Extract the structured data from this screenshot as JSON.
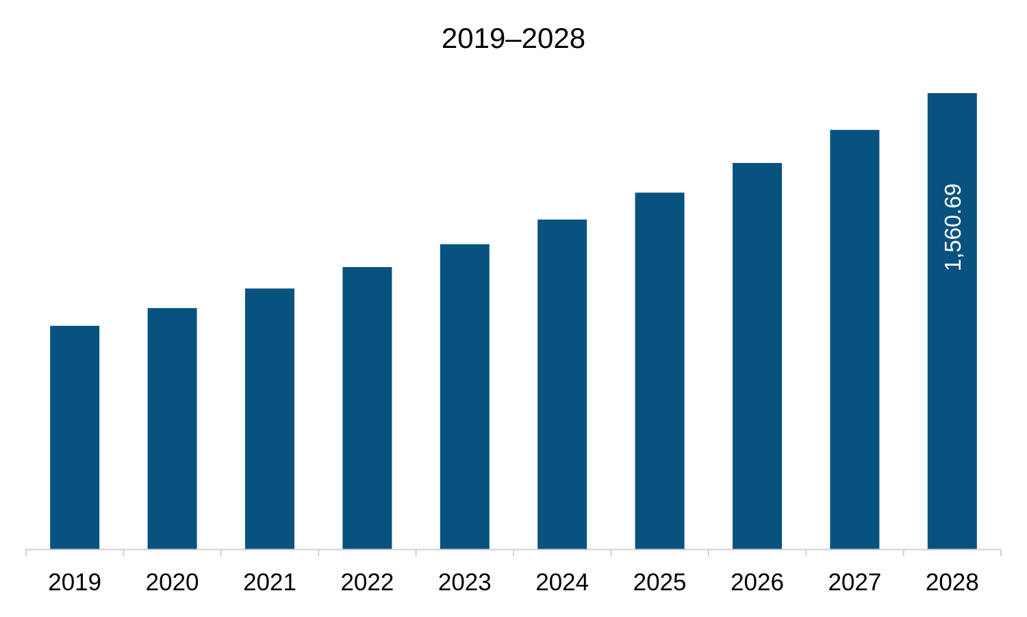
{
  "chart_data": {
    "type": "bar",
    "title": "2019–2028",
    "xlabel": "",
    "ylabel": "",
    "categories": [
      "2019",
      "2020",
      "2021",
      "2022",
      "2023",
      "2024",
      "2025",
      "2026",
      "2027",
      "2028"
    ],
    "values": [
      764.4,
      825.0,
      892.1,
      965.4,
      1043.7,
      1128.0,
      1220.2,
      1321.6,
      1434.9,
      1560.69
    ],
    "data_labels": [
      "",
      "",
      "",
      "",
      "",
      "",
      "",
      "",
      "",
      "1,560.69"
    ],
    "ylim": [
      0,
      1560.69
    ],
    "grid": false,
    "legend": "none",
    "colors": {
      "bar": "#08527F",
      "axis": "#D0D0D0",
      "data_label": "#FFFFFF"
    }
  }
}
